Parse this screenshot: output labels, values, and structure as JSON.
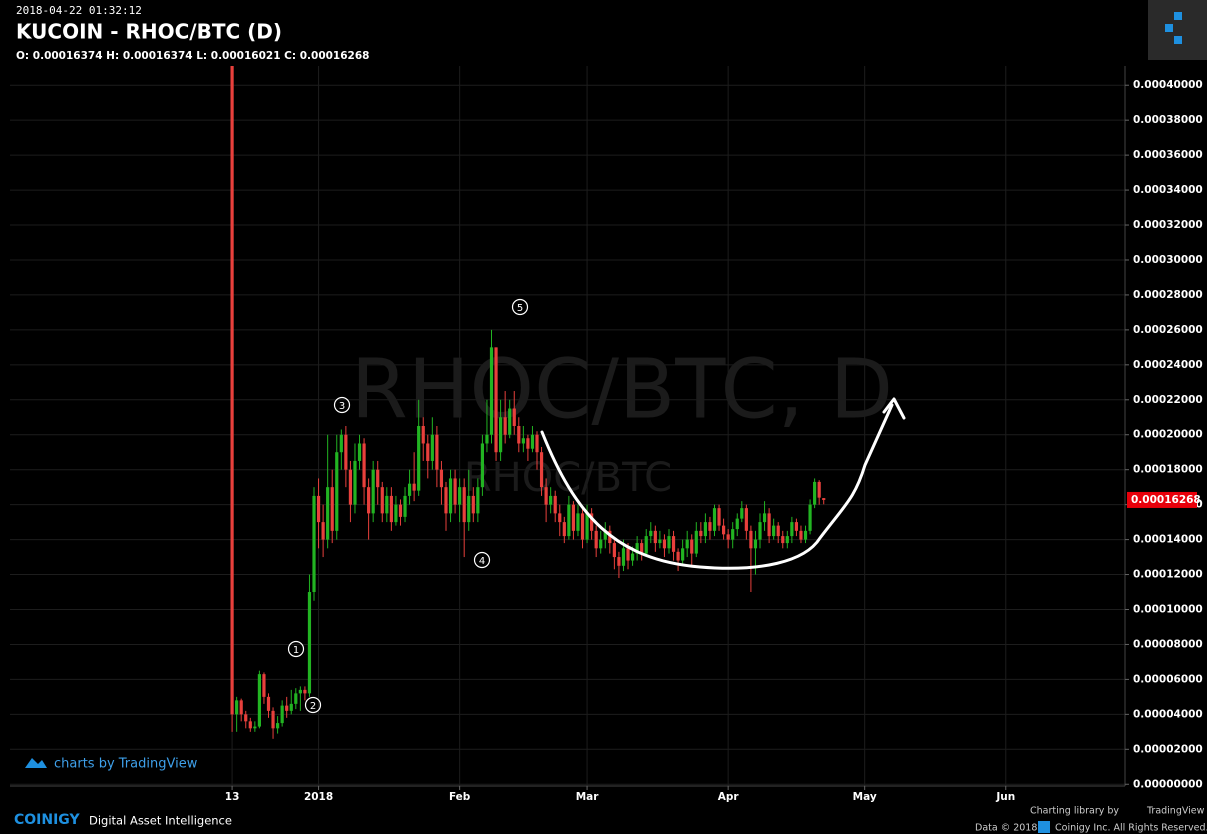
{
  "header": {
    "timestamp": "2018-04-22 01:32:12",
    "title": "KUCOIN - RHOC/BTC (D)",
    "ohlc": "O: 0.00016374 H: 0.00016374 L: 0.00016021 C: 0.00016268"
  },
  "chart_data": {
    "type": "candlestick",
    "watermark": "RHOC/BTC, D",
    "watermark_small": "RHOC/BTC",
    "up_color": "#22b422",
    "down_color": "#e8403c",
    "grid": true,
    "xlim": [
      -48.8,
      196.2
    ],
    "xticks": [
      {
        "value": 0,
        "label": "13"
      },
      {
        "value": 19,
        "label": "2018"
      },
      {
        "value": 50,
        "label": "Feb"
      },
      {
        "value": 78,
        "label": "Mar"
      },
      {
        "value": 109,
        "label": "Apr"
      },
      {
        "value": 139,
        "label": "May"
      },
      {
        "value": 170,
        "label": "Jun"
      }
    ],
    "ylim": [
      -1e-06,
      0.000411
    ],
    "yticks": [
      {
        "value": 0,
        "label": "0.00000000"
      },
      {
        "value": 2e-05,
        "label": "0.00002000"
      },
      {
        "value": 4e-05,
        "label": "0.00004000"
      },
      {
        "value": 6e-05,
        "label": "0.00006000"
      },
      {
        "value": 8e-05,
        "label": "0.00008000"
      },
      {
        "value": 0.0001,
        "label": "0.00010000"
      },
      {
        "value": 0.00012,
        "label": "0.00012000"
      },
      {
        "value": 0.00014,
        "label": "0.00014000"
      },
      {
        "value": 0.00016,
        "label": "0.00016000"
      },
      {
        "value": 0.00018,
        "label": "0.00018000"
      },
      {
        "value": 0.0002,
        "label": "0.00020000"
      },
      {
        "value": 0.00022,
        "label": "0.00022000"
      },
      {
        "value": 0.00024,
        "label": "0.00024000"
      },
      {
        "value": 0.00026,
        "label": "0.00026000"
      },
      {
        "value": 0.00028,
        "label": "0.00028000"
      },
      {
        "value": 0.0003,
        "label": "0.00030000"
      },
      {
        "value": 0.00032,
        "label": "0.00032000"
      },
      {
        "value": 0.00034,
        "label": "0.00034000"
      },
      {
        "value": 0.00036,
        "label": "0.00036000"
      },
      {
        "value": 0.00038,
        "label": "0.00038000"
      },
      {
        "value": 0.0004,
        "label": "0.00040000"
      }
    ],
    "last_price": {
      "value": 0.00016268,
      "label": "0.00016268"
    },
    "x": [
      0,
      1,
      2,
      3,
      4,
      5,
      6,
      7,
      8,
      9,
      10,
      11,
      12,
      13,
      14,
      15,
      16,
      17,
      18,
      19,
      20,
      21,
      22,
      23,
      24,
      25,
      26,
      27,
      28,
      29,
      30,
      31,
      32,
      33,
      34,
      35,
      36,
      37,
      38,
      39,
      40,
      41,
      42,
      43,
      44,
      45,
      46,
      47,
      48,
      49,
      50,
      51,
      52,
      53,
      54,
      55,
      56,
      57,
      58,
      59,
      60,
      61,
      62,
      63,
      64,
      65,
      66,
      67,
      68,
      69,
      70,
      71,
      72,
      73,
      74,
      75,
      76,
      77,
      78,
      79,
      80,
      81,
      82,
      83,
      84,
      85,
      86,
      87,
      88,
      89,
      90,
      91,
      92,
      93,
      94,
      95,
      96,
      97,
      98,
      99,
      100,
      101,
      102,
      103,
      104,
      105,
      106,
      107,
      108,
      109,
      110,
      111,
      112,
      113,
      114,
      115,
      116,
      117,
      118,
      119,
      120,
      121,
      122,
      123,
      124,
      125,
      126,
      127,
      128,
      129,
      130
    ],
    "open": [
      0.000415,
      4e-05,
      4.8e-05,
      4e-05,
      3.6e-05,
      3.2e-05,
      3.3e-05,
      6.3e-05,
      5e-05,
      4.2e-05,
      3.2e-05,
      3.5e-05,
      4.5e-05,
      4.2e-05,
      4.6e-05,
      5.2e-05,
      5.4e-05,
      5.2e-05,
      0.00011,
      0.000165,
      0.00015,
      0.00014,
      0.00017,
      0.000145,
      0.00019,
      0.0002,
      0.00018,
      0.00016,
      0.000185,
      0.000195,
      0.00017,
      0.000155,
      0.00018,
      0.00017,
      0.000155,
      0.000165,
      0.00015,
      0.00016,
      0.000153,
      0.000165,
      0.000172,
      0.000168,
      0.000205,
      0.000195,
      0.000185,
      0.0002,
      0.00018,
      0.00017,
      0.000155,
      0.000175,
      0.00016,
      0.00017,
      0.00015,
      0.000165,
      0.000155,
      0.00017,
      0.000195,
      0.0002,
      0.00025,
      0.00019,
      0.00021,
      0.0002,
      0.000215,
      0.000205,
      0.000195,
      0.000198,
      0.000192,
      0.0002,
      0.00019,
      0.00017,
      0.00016,
      0.000165,
      0.000155,
      0.00015,
      0.000142,
      0.00016,
      0.000145,
      0.000155,
      0.00014,
      0.000155,
      0.000145,
      0.000135,
      0.00014,
      0.000145,
      0.000138,
      0.00013,
      0.000125,
      0.000135,
      0.000128,
      0.000132,
      0.000138,
      0.000132,
      0.000142,
      0.000145,
      0.000138,
      0.00014,
      0.000135,
      0.000142,
      0.000133,
      0.000128,
      0.000135,
      0.00014,
      0.000132,
      0.000145,
      0.000142,
      0.00015,
      0.000145,
      0.000158,
      0.000148,
      0.000143,
      0.00014,
      0.000146,
      0.000152,
      0.000158,
      0.000145,
      0.000135,
      0.00014,
      0.00015,
      0.000155,
      0.000142,
      0.000148,
      0.000142,
      0.000138,
      0.000142,
      0.00015,
      0.000145,
      0.00014,
      0.000145,
      0.00016,
      0.000173,
      0.00016374
    ],
    "high": [
      0.000415,
      5e-05,
      4.9e-05,
      4.2e-05,
      3.8e-05,
      3.6e-05,
      6.5e-05,
      6.4e-05,
      5.2e-05,
      4.4e-05,
      3.9e-05,
      4.8e-05,
      5e-05,
      5.4e-05,
      5.5e-05,
      5.6e-05,
      5.6e-05,
      0.00012,
      0.00017,
      0.000175,
      0.00016,
      0.0002,
      0.00018,
      0.0002,
      0.000203,
      0.000205,
      0.000185,
      0.000195,
      0.0002,
      0.000198,
      0.000175,
      0.000185,
      0.000185,
      0.000173,
      0.00017,
      0.00017,
      0.000165,
      0.000163,
      0.00017,
      0.00018,
      0.00019,
      0.00022,
      0.00021,
      0.0002,
      0.00021,
      0.000205,
      0.000185,
      0.000173,
      0.00018,
      0.00018,
      0.000175,
      0.000175,
      0.00018,
      0.00017,
      0.000175,
      0.0002,
      0.00022,
      0.00026,
      0.00025,
      0.00022,
      0.000225,
      0.00022,
      0.000225,
      0.00021,
      0.000205,
      0.0002,
      0.000205,
      0.000202,
      0.000193,
      0.000175,
      0.00017,
      0.000168,
      0.00016,
      0.000153,
      0.000165,
      0.000162,
      0.00016,
      0.000158,
      0.00016,
      0.000158,
      0.000148,
      0.000145,
      0.00015,
      0.000148,
      0.00014,
      0.000133,
      0.00014,
      0.000138,
      0.000136,
      0.000142,
      0.00014,
      0.000146,
      0.00015,
      0.000148,
      0.000145,
      0.000143,
      0.000146,
      0.000145,
      0.000135,
      0.00014,
      0.000145,
      0.000143,
      0.00015,
      0.00015,
      0.000155,
      0.000153,
      0.00016,
      0.00016,
      0.000152,
      0.000146,
      0.00015,
      0.000155,
      0.000162,
      0.00016,
      0.000148,
      0.000145,
      0.000155,
      0.000162,
      0.000158,
      0.000152,
      0.00015,
      0.000145,
      0.000145,
      0.000153,
      0.000152,
      0.000148,
      0.000148,
      0.000163,
      0.000175,
      0.000174,
      0.00016374
    ],
    "low": [
      3e-05,
      3e-05,
      3.6e-05,
      3.2e-05,
      3e-05,
      3e-05,
      3.2e-05,
      4.6e-05,
      3.8e-05,
      2.6e-05,
      2.9e-05,
      3.3e-05,
      3.8e-05,
      4e-05,
      4.3e-05,
      4.2e-05,
      4.8e-05,
      5e-05,
      0.000105,
      0.000135,
      0.00013,
      0.000135,
      0.000138,
      0.00014,
      0.00018,
      0.00017,
      0.00015,
      0.000155,
      0.00018,
      0.00016,
      0.00014,
      0.00015,
      0.00016,
      0.00015,
      0.00015,
      0.000145,
      0.000148,
      0.000148,
      0.00015,
      0.00016,
      0.000162,
      0.000165,
      0.000185,
      0.000175,
      0.00018,
      0.00017,
      0.00016,
      0.000145,
      0.00015,
      0.000155,
      0.00015,
      0.00013,
      0.000145,
      0.00015,
      0.00015,
      0.000165,
      0.00019,
      0.000195,
      0.000185,
      0.000185,
      0.000195,
      0.000198,
      0.0002,
      0.00019,
      0.00019,
      0.000185,
      0.00019,
      0.00018,
      0.000165,
      0.00015,
      0.000155,
      0.00015,
      0.000142,
      0.000138,
      0.00014,
      0.00014,
      0.000142,
      0.000135,
      0.000138,
      0.00014,
      0.00013,
      0.000132,
      0.000135,
      0.000132,
      0.000123,
      0.000118,
      0.000122,
      0.000123,
      0.000125,
      0.000128,
      0.000128,
      0.00013,
      0.000138,
      0.000133,
      0.000135,
      0.00013,
      0.000132,
      0.000128,
      0.000122,
      0.000125,
      0.00013,
      0.000125,
      0.00013,
      0.000138,
      0.000138,
      0.00014,
      0.000142,
      0.000145,
      0.00014,
      0.000135,
      0.000135,
      0.000142,
      0.00015,
      0.00014,
      0.00011,
      0.00012,
      0.000135,
      0.000145,
      0.000138,
      0.00014,
      0.000138,
      0.000135,
      0.000135,
      0.000138,
      0.000142,
      0.000138,
      0.000138,
      0.000143,
      0.000158,
      0.00016,
      0.00016021
    ],
    "close": [
      4e-05,
      4.8e-05,
      4e-05,
      3.6e-05,
      3.2e-05,
      3.3e-05,
      6.3e-05,
      5e-05,
      4.2e-05,
      3.2e-05,
      3.5e-05,
      4.5e-05,
      4.2e-05,
      4.6e-05,
      5.2e-05,
      5.4e-05,
      5.2e-05,
      0.00011,
      0.000165,
      0.00015,
      0.00014,
      0.00017,
      0.000145,
      0.00019,
      0.0002,
      0.00018,
      0.00016,
      0.000185,
      0.000195,
      0.00017,
      0.000155,
      0.00018,
      0.00017,
      0.000155,
      0.000165,
      0.00015,
      0.00016,
      0.000153,
      0.000165,
      0.000172,
      0.000168,
      0.000205,
      0.000195,
      0.000185,
      0.0002,
      0.00018,
      0.00017,
      0.000155,
      0.000175,
      0.00016,
      0.00017,
      0.00015,
      0.000165,
      0.000155,
      0.00017,
      0.000195,
      0.0002,
      0.00025,
      0.00019,
      0.00021,
      0.0002,
      0.000215,
      0.000205,
      0.000195,
      0.000198,
      0.000192,
      0.0002,
      0.00019,
      0.00017,
      0.00016,
      0.000165,
      0.000155,
      0.00015,
      0.000142,
      0.00016,
      0.000145,
      0.000155,
      0.00014,
      0.000155,
      0.000145,
      0.000135,
      0.00014,
      0.000145,
      0.000138,
      0.00013,
      0.000125,
      0.000135,
      0.000128,
      0.000132,
      0.000138,
      0.000132,
      0.000142,
      0.000145,
      0.000138,
      0.00014,
      0.000135,
      0.000142,
      0.000133,
      0.000128,
      0.000135,
      0.00014,
      0.000132,
      0.000145,
      0.000142,
      0.00015,
      0.000145,
      0.000158,
      0.000148,
      0.000143,
      0.00014,
      0.000146,
      0.000152,
      0.000158,
      0.000145,
      0.000135,
      0.00014,
      0.00015,
      0.000155,
      0.000142,
      0.000148,
      0.000142,
      0.000138,
      0.000142,
      0.00015,
      0.000145,
      0.00014,
      0.000145,
      0.00016,
      0.000173,
      0.000164,
      0.00016268
    ],
    "annotations": [
      "1",
      "2",
      "3",
      "4",
      "5"
    ]
  },
  "footer": {
    "tv_credit": "charts by TradingView",
    "brand": "COINIGY",
    "tagline": "Digital Asset Intelligence",
    "library": "Charting library by",
    "library_name": "TradingView",
    "copyright": "Data © 2018",
    "rights": "Coinigy Inc. All Rights Reserved."
  }
}
